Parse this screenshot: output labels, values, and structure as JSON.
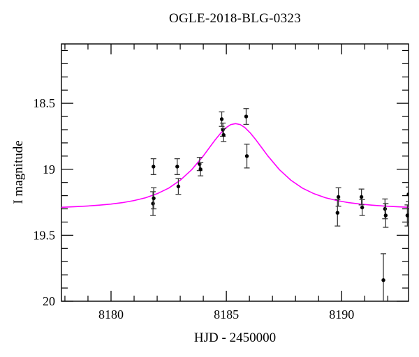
{
  "chart_data": {
    "type": "scatter",
    "title": "OGLE-2018-BLG-0323",
    "xlabel": "HJD - 2450000",
    "ylabel": "I magnitude",
    "x_range": [
      8177.85,
      8192.9
    ],
    "y_range": [
      20.0,
      18.05
    ],
    "y_inverted": true,
    "grid": false,
    "legend": "none",
    "x_major_ticks": [
      {
        "value": 8180,
        "label": "8180"
      },
      {
        "value": 8185,
        "label": "8185"
      },
      {
        "value": 8190,
        "label": "8190"
      }
    ],
    "x_minor_tick_step": 1,
    "y_major_ticks": [
      {
        "value": 18.5,
        "label": "18.5"
      },
      {
        "value": 19.0,
        "label": "19"
      },
      {
        "value": 19.5,
        "label": "19.5"
      },
      {
        "value": 20.0,
        "label": "20"
      }
    ],
    "y_minor_tick_step": 0.1,
    "points": [
      {
        "t": 8181.82,
        "mag": 19.26,
        "err": 0.09
      },
      {
        "t": 8181.85,
        "mag": 19.22,
        "err": 0.08
      },
      {
        "t": 8181.84,
        "mag": 18.98,
        "err": 0.06
      },
      {
        "t": 8182.87,
        "mag": 18.98,
        "err": 0.06
      },
      {
        "t": 8182.92,
        "mag": 19.13,
        "err": 0.06
      },
      {
        "t": 8183.84,
        "mag": 18.96,
        "err": 0.05
      },
      {
        "t": 8183.88,
        "mag": 19.0,
        "err": 0.05
      },
      {
        "t": 8184.8,
        "mag": 18.62,
        "err": 0.055
      },
      {
        "t": 8184.85,
        "mag": 18.7,
        "err": 0.05
      },
      {
        "t": 8184.88,
        "mag": 18.74,
        "err": 0.05
      },
      {
        "t": 8185.86,
        "mag": 18.6,
        "err": 0.06
      },
      {
        "t": 8185.89,
        "mag": 18.9,
        "err": 0.09
      },
      {
        "t": 8189.82,
        "mag": 19.33,
        "err": 0.1
      },
      {
        "t": 8189.86,
        "mag": 19.21,
        "err": 0.07
      },
      {
        "t": 8190.86,
        "mag": 19.21,
        "err": 0.06
      },
      {
        "t": 8190.89,
        "mag": 19.29,
        "err": 0.06
      },
      {
        "t": 8191.81,
        "mag": 19.84,
        "err": 0.2
      },
      {
        "t": 8191.88,
        "mag": 19.3,
        "err": 0.075
      },
      {
        "t": 8191.91,
        "mag": 19.35,
        "err": 0.09
      },
      {
        "t": 8192.85,
        "mag": 19.35,
        "err": 0.08
      },
      {
        "t": 8192.9,
        "mag": 19.19,
        "err": 0.055
      }
    ],
    "model_curve": {
      "name": "microlensing-model-fit",
      "color": "#ff00ff",
      "points": [
        [
          8177.85,
          19.288
        ],
        [
          8178.5,
          19.283
        ],
        [
          8179.0,
          19.278
        ],
        [
          8179.5,
          19.272
        ],
        [
          8180.0,
          19.264
        ],
        [
          8180.5,
          19.253
        ],
        [
          8181.0,
          19.237
        ],
        [
          8181.5,
          19.216
        ],
        [
          8182.0,
          19.185
        ],
        [
          8182.5,
          19.143
        ],
        [
          8183.0,
          19.083
        ],
        [
          8183.5,
          19.003
        ],
        [
          8184.0,
          18.899
        ],
        [
          8184.25,
          18.84
        ],
        [
          8184.5,
          18.781
        ],
        [
          8184.75,
          18.727
        ],
        [
          8185.0,
          18.683
        ],
        [
          8185.2,
          18.661
        ],
        [
          8185.4,
          18.654
        ],
        [
          8185.6,
          18.661
        ],
        [
          8185.8,
          18.683
        ],
        [
          8186.05,
          18.727
        ],
        [
          8186.3,
          18.781
        ],
        [
          8186.55,
          18.84
        ],
        [
          8186.8,
          18.899
        ],
        [
          8187.3,
          19.003
        ],
        [
          8187.8,
          19.083
        ],
        [
          8188.3,
          19.143
        ],
        [
          8188.8,
          19.185
        ],
        [
          8189.3,
          19.216
        ],
        [
          8189.8,
          19.237
        ],
        [
          8190.3,
          19.253
        ],
        [
          8190.8,
          19.264
        ],
        [
          8191.3,
          19.272
        ],
        [
          8191.8,
          19.278
        ],
        [
          8192.3,
          19.283
        ],
        [
          8192.9,
          19.288
        ]
      ]
    },
    "colors": {
      "data_points": "#000000",
      "error_bars": "#3a3a3a",
      "frame": "#000000",
      "model": "#ff00ff",
      "background": "#ffffff"
    }
  }
}
